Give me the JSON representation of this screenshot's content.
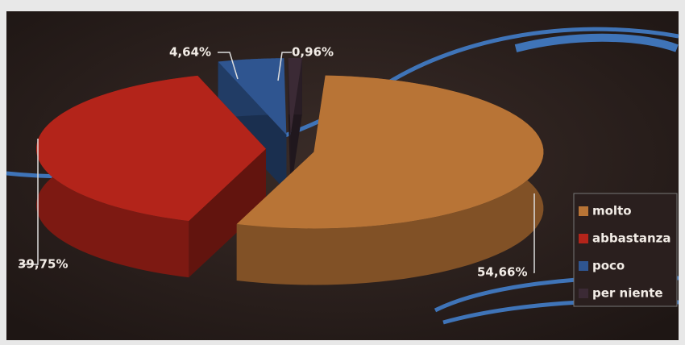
{
  "chart_data": {
    "type": "pie",
    "categories": [
      "molto",
      "abbastanza",
      "poco",
      "per niente"
    ],
    "values": [
      54.66,
      39.75,
      4.64,
      0.96
    ],
    "value_labels": [
      "54,66%",
      "39,75%",
      "4,64%",
      "0,96%"
    ],
    "colors": [
      "#b87436",
      "#b3241a",
      "#2f5590",
      "#3b2a35"
    ],
    "legend": "right"
  }
}
